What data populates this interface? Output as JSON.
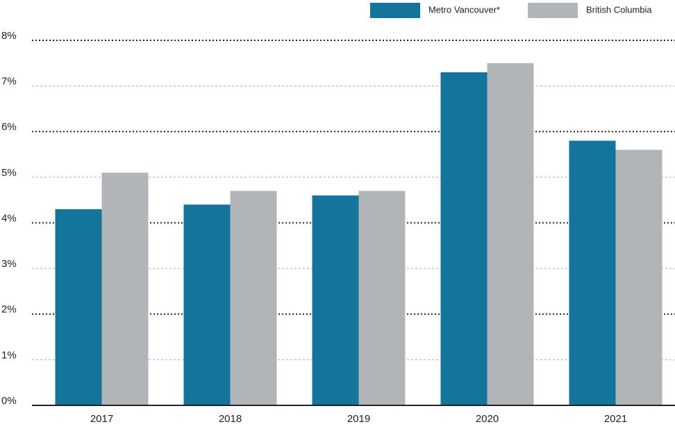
{
  "chart_data": {
    "type": "bar",
    "categories": [
      "2017",
      "2018",
      "2019",
      "2020",
      "2021"
    ],
    "series": [
      {
        "name": "Metro Vancouver*",
        "color": "#13759c",
        "values": [
          4.3,
          4.4,
          4.6,
          7.3,
          5.8
        ]
      },
      {
        "name": "British Columbia",
        "color": "#b1b5b8",
        "values": [
          5.1,
          4.7,
          4.7,
          7.5,
          5.6
        ]
      }
    ],
    "ylim": [
      0,
      8
    ],
    "yticks": [
      {
        "value": 0,
        "label": "0%"
      },
      {
        "value": 1,
        "label": "1%"
      },
      {
        "value": 2,
        "label": "2%"
      },
      {
        "value": 3,
        "label": "3%"
      },
      {
        "value": 4,
        "label": "4%"
      },
      {
        "value": 5,
        "label": "5%"
      },
      {
        "value": 6,
        "label": "6%"
      },
      {
        "value": 7,
        "label": "7%"
      },
      {
        "value": 8,
        "label": "8%"
      }
    ],
    "grid": true,
    "legend": "top-right"
  }
}
